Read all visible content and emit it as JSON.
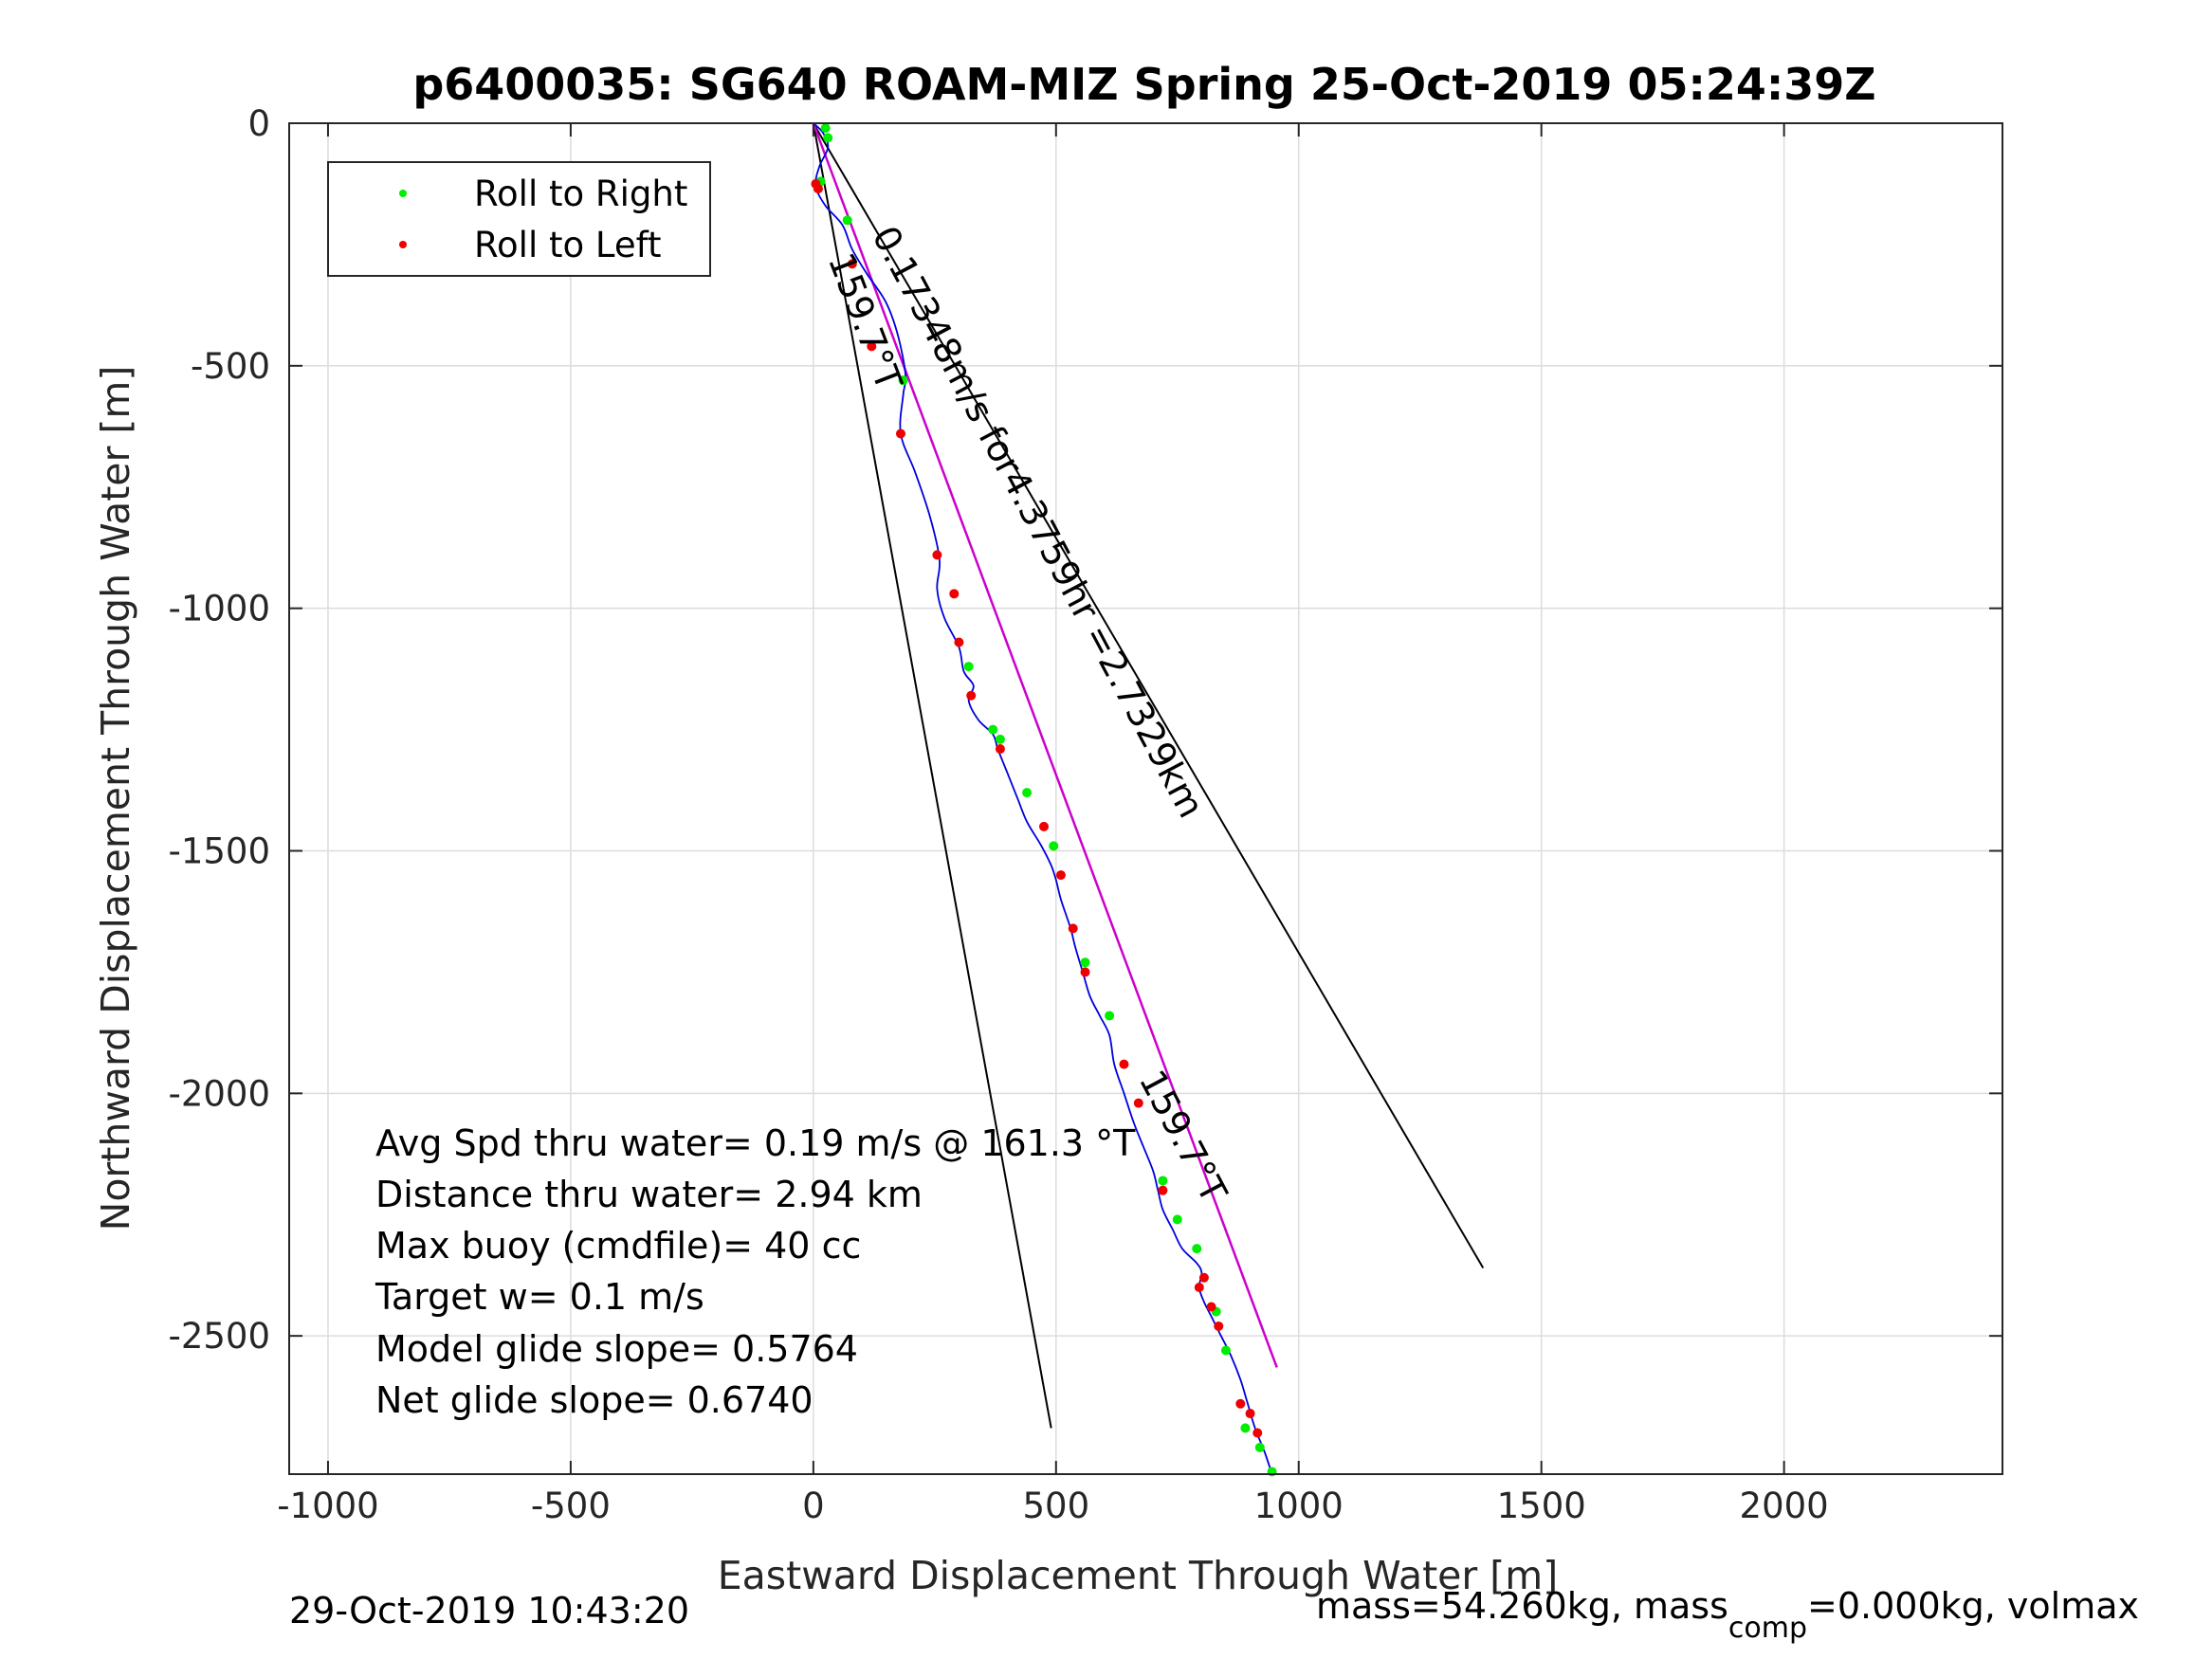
{
  "chart_data": {
    "type": "line",
    "title": "p6400035: SG640 ROAM-MIZ Spring 25-Oct-2019 05:24:39Z",
    "xlabel": "Eastward Displacement Through Water [m]",
    "ylabel": "Northward Displacement Through Water [m]",
    "xlim": [
      -1080,
      2450
    ],
    "ylim": [
      -2785,
      0
    ],
    "xticks": [
      -1000,
      -500,
      0,
      500,
      1000,
      1500,
      2000
    ],
    "xtick_labels": [
      "-1000",
      "-500",
      "0",
      "500",
      "1000",
      "1500",
      "2000"
    ],
    "yticks": [
      0,
      -500,
      -1000,
      -1500,
      -2000,
      -2500
    ],
    "ytick_labels": [
      "0",
      "-500",
      "-1000",
      "-1500",
      "-2000",
      "-2500"
    ],
    "grid": true,
    "legend": {
      "placement": "top-left",
      "entries": [
        {
          "label": "Roll to Right",
          "color": "#00ee00"
        },
        {
          "label": "Roll to Left",
          "color": "#ee0000"
        }
      ]
    },
    "colors": {
      "track": "#0000dd",
      "net_course": "#cc00cc",
      "heading_lines": "#000000",
      "roll_right": "#00ee00",
      "roll_left": "#ee0000"
    },
    "track": {
      "name": "track",
      "x": [
        0,
        20,
        30,
        12,
        5,
        25,
        60,
        80,
        110,
        150,
        175,
        190,
        185,
        180,
        210,
        240,
        260,
        255,
        270,
        300,
        310,
        330,
        320,
        340,
        370,
        380,
        400,
        420,
        440,
        470,
        490,
        500,
        510,
        530,
        540,
        555,
        570,
        590,
        610,
        620,
        640,
        660,
        680,
        700,
        710,
        720,
        740,
        760,
        790,
        800,
        795,
        805,
        820,
        840,
        860,
        880,
        895,
        910,
        930,
        945
      ],
      "y": [
        0,
        -20,
        -50,
        -90,
        -130,
        -170,
        -210,
        -260,
        -310,
        -370,
        -440,
        -520,
        -560,
        -640,
        -720,
        -810,
        -900,
        -960,
        -1020,
        -1080,
        -1130,
        -1160,
        -1190,
        -1230,
        -1260,
        -1290,
        -1340,
        -1390,
        -1440,
        -1490,
        -1530,
        -1560,
        -1600,
        -1660,
        -1700,
        -1750,
        -1800,
        -1840,
        -1880,
        -1940,
        -2000,
        -2060,
        -2110,
        -2160,
        -2200,
        -2240,
        -2280,
        -2320,
        -2350,
        -2370,
        -2400,
        -2430,
        -2460,
        -2500,
        -2540,
        -2590,
        -2640,
        -2690,
        -2740,
        -2785
      ]
    },
    "roll_right_points": {
      "x": [
        25,
        30,
        15,
        70,
        185,
        320,
        370,
        385,
        440,
        495,
        560,
        610,
        720,
        750,
        790,
        830,
        850,
        890,
        920,
        945
      ],
      "y": [
        -10,
        -30,
        -120,
        -200,
        -530,
        -1120,
        -1250,
        -1270,
        -1380,
        -1490,
        -1730,
        -1840,
        -2180,
        -2260,
        -2320,
        -2450,
        -2530,
        -2690,
        -2730,
        -2780
      ]
    },
    "roll_left_points": {
      "x": [
        5,
        10,
        80,
        120,
        180,
        255,
        290,
        300,
        325,
        385,
        475,
        510,
        535,
        560,
        640,
        670,
        720,
        805,
        795,
        820,
        835,
        880,
        900,
        915
      ],
      "y": [
        -125,
        -135,
        -290,
        -460,
        -640,
        -890,
        -970,
        -1070,
        -1180,
        -1290,
        -1450,
        -1550,
        -1660,
        -1750,
        -1940,
        -2020,
        -2200,
        -2380,
        -2400,
        -2440,
        -2480,
        -2640,
        -2660,
        -2700
      ]
    },
    "net_course_line": {
      "x": [
        0,
        955
      ],
      "y": [
        0,
        -2565
      ]
    },
    "heading_lines": [
      {
        "x": [
          0,
          490
        ],
        "y": [
          0,
          -2690
        ]
      },
      {
        "x": [
          0,
          1380
        ],
        "y": [
          0,
          -2360
        ]
      }
    ],
    "line_labels": [
      {
        "text": "159.7°T",
        "x": 30,
        "y": -280,
        "angle_deg": 69
      },
      {
        "text": "0.17348m/s for4.3759hr =2.7329km",
        "x": 120,
        "y": -230,
        "angle_deg": 62
      },
      {
        "text": "159.7°T",
        "x": 670,
        "y": -1970,
        "angle_deg": 62
      }
    ],
    "annotations": [
      "Avg Spd thru water=  0.19 m/s @ 161.3 °T",
      "Distance thru water=  2.94 km",
      "Max buoy (cmdfile)= 40 cc",
      "Target w= 0.1 m/s",
      "Model glide slope= 0.5764",
      "Net glide slope= 0.6740"
    ]
  },
  "footer": {
    "timestamp": "29-Oct-2019 10:43:20",
    "mass_prefix": "mass=54.260kg, mass",
    "mass_sub": "comp",
    "mass_suffix": "=0.000kg, volmax"
  }
}
